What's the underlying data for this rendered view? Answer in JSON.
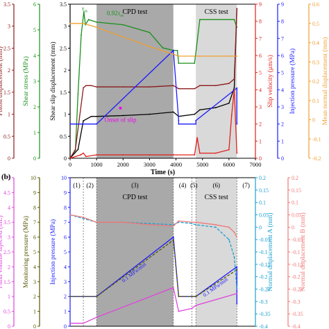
{
  "chart_data": [
    {
      "type": "line",
      "panel_label": "",
      "xlabel": "Time (s)",
      "xlim": [
        0,
        7000
      ],
      "xticks": [
        0,
        1000,
        2000,
        3000,
        4000,
        5000,
        6000,
        7000
      ],
      "shaded_regions": [
        {
          "label": "CPD test",
          "x0": 1000,
          "x1": 3900,
          "color": "#a9a9a9"
        },
        {
          "label": "CSS test",
          "x0": 4750,
          "x1": 6300,
          "color": "#d9d9d9"
        }
      ],
      "annotations": [
        {
          "text": "τ",
          "sub": "ss",
          "at": [
            550,
            3.35
          ]
        },
        {
          "text": "0.92τ",
          "sub": "ss",
          "at": [
            1700,
            3.25
          ]
        },
        {
          "text": "Onset of slip",
          "at": [
            1900,
            0.95
          ],
          "color": "#ee00ee"
        }
      ],
      "axes": [
        {
          "id": "piston",
          "label": "Piston displacement (mm)",
          "color": "#8b1a1a",
          "lim": [
            0,
            3.5
          ],
          "ticks": [
            0,
            0.5,
            1,
            1.5,
            2,
            2.5,
            3,
            3.5
          ]
        },
        {
          "id": "shear",
          "label": "Shear stress (MPa)",
          "color": "#1a8f1a",
          "lim": [
            0,
            6
          ],
          "ticks": [
            0,
            1,
            2,
            3,
            4,
            5,
            6
          ]
        },
        {
          "id": "slip",
          "label": "Shear slip displacement (mm)",
          "color": "#000000",
          "lim": [
            0,
            3.5
          ],
          "ticks": [
            0,
            0.5,
            1,
            1.5,
            2,
            2.5,
            3,
            3.5
          ]
        },
        {
          "id": "slipvel",
          "label": "Slip velocity (μm/s)",
          "color": "#e0201b",
          "lim": [
            0,
            9
          ],
          "ticks": [
            0,
            1,
            2,
            3,
            4,
            5,
            6,
            7,
            8,
            9
          ]
        },
        {
          "id": "inj",
          "label": "Injection pressure (MPa)",
          "color": "#1a1aff",
          "lim": [
            0,
            9
          ],
          "ticks": [
            0,
            1,
            2,
            3,
            4,
            5,
            6,
            7,
            8,
            9
          ]
        },
        {
          "id": "mnd",
          "label": "Mean normal displacement (mm)",
          "color": "#f0a030",
          "lim": [
            -0.2,
            0.6
          ],
          "ticks": [
            -0.2,
            -0.1,
            0,
            0.1,
            0.2,
            0.3,
            0.4,
            0.5,
            0.6
          ]
        }
      ],
      "series": [
        {
          "axis": "shear",
          "color": "#1a8f1a",
          "x": [
            0,
            200,
            300,
            420,
            520,
            580,
            700,
            1000,
            2000,
            3000,
            3500,
            3900,
            4050,
            4100,
            4700,
            4900,
            6200,
            6300
          ],
          "y": [
            0,
            0.3,
            2.5,
            4.8,
            5.7,
            5.2,
            5.4,
            5.3,
            5.2,
            4.9,
            4.3,
            4.2,
            4.2,
            3.7,
            3.7,
            5.4,
            5.4,
            5.1
          ]
        },
        {
          "axis": "slip",
          "color": "#000000",
          "x": [
            0,
            300,
            500,
            800,
            1000,
            2000,
            3000,
            3900,
            4100,
            4700,
            4900,
            5500,
            6000,
            6200,
            6300
          ],
          "y": [
            0,
            0.2,
            0.85,
            0.95,
            0.95,
            0.97,
            1.0,
            1.05,
            0.95,
            1.0,
            1.1,
            1.15,
            1.25,
            1.6,
            3.4
          ]
        },
        {
          "axis": "piston",
          "color": "#8b1a1a",
          "x": [
            0,
            200,
            500,
            600,
            800,
            1000,
            2000,
            3000,
            3900,
            4100,
            4700,
            4900,
            5500,
            6000,
            6200,
            6300
          ],
          "y": [
            0,
            0.2,
            1.6,
            1.65,
            1.65,
            1.62,
            1.62,
            1.62,
            1.65,
            1.58,
            1.58,
            1.65,
            1.65,
            1.7,
            1.8,
            3.4
          ]
        },
        {
          "axis": "inj",
          "color": "#1a1aff",
          "x": [
            0,
            1000,
            1000,
            3900,
            3900,
            4100,
            4100,
            4750,
            4750,
            6300,
            6300
          ],
          "y": [
            2,
            2,
            2,
            6.3,
            6.3,
            2.2,
            2.0,
            2.0,
            2.2,
            4.1,
            2.0
          ]
        },
        {
          "axis": "mnd",
          "color": "#f0a030",
          "x": [
            0,
            500,
            1000,
            2000,
            3000,
            3900,
            4100,
            4700,
            4900,
            6000,
            6300
          ],
          "y": [
            0.5,
            0.5,
            0.48,
            0.43,
            0.38,
            0.34,
            0.33,
            0.33,
            0.33,
            0.33,
            0.33
          ]
        },
        {
          "axis": "slipvel",
          "color": "#e0201b",
          "x": [
            0,
            400,
            500,
            600,
            1000,
            2000,
            3000,
            3900,
            4700,
            4800,
            4900,
            5500,
            6000,
            6100,
            6200,
            6300
          ],
          "y": [
            0,
            0.2,
            0.3,
            0.1,
            0.2,
            0.2,
            0.2,
            0.2,
            0.2,
            1.2,
            0.3,
            0.3,
            0.5,
            2.5,
            4.0,
            0.3
          ]
        }
      ]
    },
    {
      "type": "line",
      "panel_label": "(b)",
      "stage_labels": [
        "(1)",
        "(2)",
        "(3)",
        "(4)",
        "(5)",
        "(6)",
        "(7)"
      ],
      "stage_bounds": [
        0,
        500,
        1000,
        3900,
        4600,
        4750,
        6300,
        7000
      ],
      "shaded_regions": [
        {
          "label": "CPD test",
          "x0": 1000,
          "x1": 3900,
          "color": "#a9a9a9"
        },
        {
          "label": "CSS test",
          "x0": 4750,
          "x1": 6300,
          "color": "#d9d9d9"
        }
      ],
      "annotations": [
        {
          "text": "0.1 MPa/min",
          "series": "Injection pressure (MPa)",
          "stage": "(3)"
        },
        {
          "text": "0.1 MPa/min",
          "series": "Injection pressure (MPa)",
          "stage": "(6)"
        }
      ],
      "axes": [
        {
          "id": "fluid",
          "label": "Fluid volume injected (mL)",
          "color": "#dd44dd",
          "lim": [
            0,
            5
          ],
          "ticks": [
            0,
            0.5,
            1,
            1.5,
            2,
            2.5,
            3,
            3.5,
            4,
            4.5,
            5
          ]
        },
        {
          "id": "monitor",
          "label": "Monitoring pressure (MPa)",
          "color": "#555500",
          "lim": [
            0,
            10
          ],
          "ticks": [
            0,
            1,
            2,
            3,
            4,
            5,
            6,
            7,
            8,
            9,
            10
          ]
        },
        {
          "id": "inj",
          "label": "Injection pressure (MPa)",
          "color": "#1a1aff",
          "lim": [
            0,
            10
          ],
          "ticks": [
            0,
            1,
            2,
            3,
            4,
            5,
            6,
            7,
            8,
            9,
            10
          ]
        },
        {
          "id": "nda",
          "label": "Normal displacement A (mm)",
          "color": "#1aa0d0",
          "lim": [
            -0.4,
            0.2
          ],
          "ticks": [
            -0.4,
            -0.35,
            -0.3,
            -0.25,
            -0.2,
            -0.15,
            -0.1,
            -0.05,
            0,
            0.05,
            0.1,
            0.15,
            0.2
          ]
        },
        {
          "id": "ndb",
          "label": "Normal displacement B (mm)",
          "color": "#f07878",
          "lim": [
            -0.4,
            0.2
          ],
          "ticks": [
            -0.4,
            -0.35,
            -0.3,
            -0.25,
            -0.2,
            -0.15,
            -0.1,
            -0.05,
            0,
            0.05,
            0.1,
            0.15,
            0.2
          ]
        }
      ],
      "series": [
        {
          "axis": "inj",
          "color": "#1a1aff",
          "x": [
            0,
            500,
            1000,
            3900,
            3900,
            4100,
            4600,
            4750,
            6300,
            6300
          ],
          "y": [
            2.0,
            2.0,
            2.0,
            6.0,
            6.0,
            2.0,
            2.0,
            2.0,
            4.0,
            1.5
          ]
        },
        {
          "axis": "monitor",
          "color": "#555500",
          "x": [
            0,
            500,
            1000,
            3900,
            4100,
            4600,
            4750,
            6300
          ],
          "y": [
            2.0,
            2.0,
            2.0,
            5.8,
            2.0,
            2.0,
            2.0,
            3.8
          ]
        },
        {
          "axis": "fluid",
          "color": "#dd44dd",
          "x": [
            0,
            500,
            1000,
            3900,
            4100,
            4600,
            4750,
            6300
          ],
          "y": [
            0.1,
            0.1,
            0.3,
            1.3,
            0.5,
            0.6,
            0.7,
            1.1
          ]
        },
        {
          "axis": "nda",
          "color": "#1aa0d0",
          "x": [
            0,
            500,
            1000,
            2000,
            3000,
            3900,
            4100,
            4600,
            4750,
            5500,
            6000,
            6200,
            6300
          ],
          "y": [
            0.05,
            0.035,
            0.02,
            0.02,
            0.015,
            0.01,
            0.02,
            0.015,
            0.01,
            0.0,
            -0.05,
            -0.12,
            -0.25
          ]
        },
        {
          "axis": "ndb",
          "color": "#f07878",
          "x": [
            0,
            500,
            1000,
            2000,
            3000,
            3900,
            4100,
            4600,
            4750,
            5500,
            6000,
            6200,
            6300
          ],
          "y": [
            0.05,
            0.04,
            0.02,
            0.02,
            0.01,
            0.005,
            0.025,
            0.02,
            0.02,
            0.01,
            0.0,
            -0.02,
            -0.04
          ]
        }
      ]
    }
  ]
}
